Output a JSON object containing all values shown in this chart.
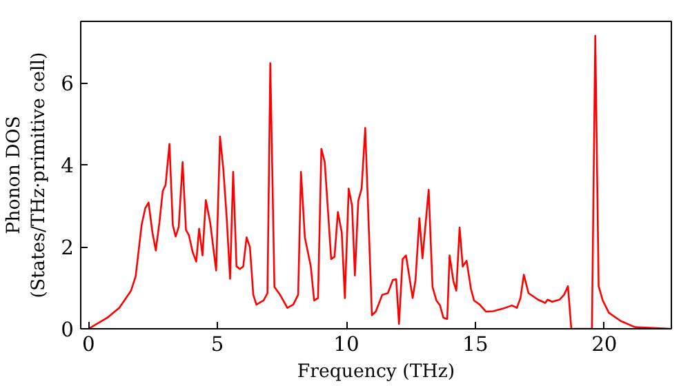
{
  "chart_data": {
    "type": "line",
    "xlabel": "Frequency (THz)",
    "ylabel": "Phonon DOS\n(States/THz·primitive cell)",
    "xlim": [
      -0.3,
      22.6
    ],
    "ylim": [
      0,
      7.5
    ],
    "xticks": [
      0,
      5,
      10,
      15,
      20
    ],
    "yticks": [
      0,
      2,
      4,
      6
    ],
    "grid": false,
    "marker": "none",
    "line_style": "solid",
    "x": [
      0,
      0.73,
      1.19,
      1.28,
      1.65,
      1.83,
      2.06,
      2.2,
      2.33,
      2.48,
      2.61,
      2.75,
      2.88,
      2.99,
      3.14,
      3.27,
      3.38,
      3.5,
      3.65,
      3.78,
      3.89,
      4.04,
      4.18,
      4.29,
      4.42,
      4.55,
      4.72,
      4.95,
      5.1,
      5.23,
      5.36,
      5.49,
      5.61,
      5.74,
      5.87,
      6.0,
      6.13,
      6.26,
      6.39,
      6.51,
      6.79,
      6.94,
      7.05,
      7.21,
      7.43,
      7.71,
      7.94,
      8.13,
      8.24,
      8.39,
      8.62,
      8.75,
      8.9,
      9.03,
      9.16,
      9.41,
      9.54,
      9.67,
      9.82,
      9.94,
      10.09,
      10.22,
      10.33,
      10.46,
      10.59,
      10.73,
      10.99,
      11.14,
      11.39,
      11.61,
      11.8,
      11.93,
      12.04,
      12.18,
      12.31,
      12.57,
      12.68,
      12.83,
      12.95,
      13.19,
      13.34,
      13.49,
      13.63,
      13.76,
      13.91,
      14.0,
      14.15,
      14.26,
      14.39,
      14.51,
      14.66,
      14.83,
      14.95,
      15.17,
      15.41,
      15.69,
      16.06,
      16.42,
      16.61,
      16.75,
      16.88,
      17.06,
      17.43,
      17.71,
      17.8,
      17.98,
      18.26,
      18.44,
      18.59,
      18.72,
      19.52,
      19.65,
      19.78,
      19.94,
      20.18,
      20.64,
      21.19,
      22.56
    ],
    "series": [
      {
        "color": "#ff0000",
        "values": [
          0,
          0.27,
          0.51,
          0.59,
          0.93,
          1.28,
          2.53,
          2.94,
          3.08,
          2.35,
          1.91,
          2.59,
          3.36,
          3.51,
          4.51,
          2.53,
          2.25,
          2.49,
          4.07,
          2.41,
          2.29,
          1.87,
          1.64,
          2.44,
          1.79,
          3.14,
          2.59,
          1.42,
          4.69,
          3.89,
          2.7,
          1.22,
          3.83,
          1.52,
          1.46,
          1.52,
          2.23,
          1.99,
          0.83,
          0.59,
          0.69,
          0.87,
          6.48,
          1.02,
          0.83,
          0.51,
          0.59,
          0.83,
          3.83,
          2.23,
          1.52,
          0.69,
          0.75,
          4.39,
          4.07,
          1.7,
          1.76,
          2.85,
          2.35,
          0.75,
          3.42,
          3.0,
          1.3,
          3.12,
          3.42,
          4.9,
          0.33,
          0.42,
          0.83,
          0.87,
          1.19,
          1.21,
          0.12,
          1.7,
          1.79,
          0.75,
          1.19,
          2.7,
          1.72,
          3.39,
          1.02,
          0.69,
          0.57,
          0.27,
          0.24,
          1.79,
          1.16,
          0.93,
          2.47,
          1.52,
          1.66,
          0.97,
          0.69,
          0.59,
          0.42,
          0.43,
          0.49,
          0.57,
          0.51,
          0.75,
          1.32,
          0.87,
          0.71,
          0.63,
          0.71,
          0.66,
          0.71,
          0.83,
          1.04,
          0,
          0,
          7.15,
          1.04,
          0.69,
          0.39,
          0.19,
          0.04,
          0
        ]
      }
    ]
  }
}
